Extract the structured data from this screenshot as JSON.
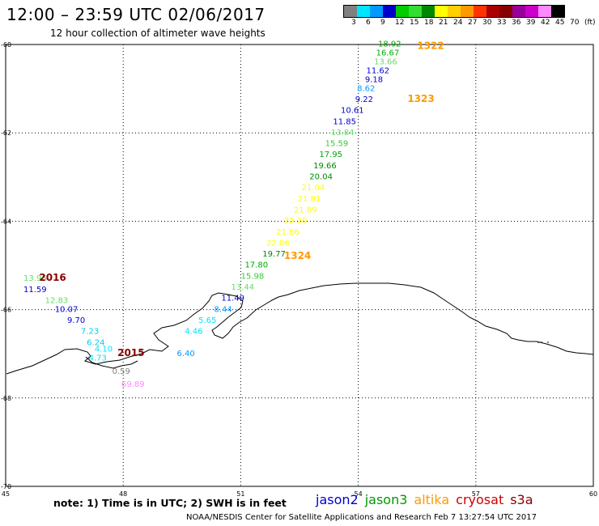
{
  "title": "12:00 – 23:59 UTC 02/06/2017",
  "subtitle": "12 hour collection of altimeter wave heights",
  "colorbar": {
    "colors": [
      "#808080",
      "#00e5ff",
      "#0099ff",
      "#0000cc",
      "#00cc00",
      "#33dd33",
      "#008800",
      "#ffff00",
      "#ffd000",
      "#ff9900",
      "#ff3300",
      "#aa0000",
      "#880000",
      "#990099",
      "#cc00cc",
      "#ff88ff",
      "#000000"
    ],
    "labels": [
      "3",
      "6",
      "9",
      "12",
      "15",
      "18",
      "21",
      "24",
      "27",
      "30",
      "33",
      "36",
      "39",
      "42",
      "45",
      "70",
      "(ft)"
    ]
  },
  "axes": {
    "x_ticks": [
      "45",
      "48",
      "51",
      "54",
      "57",
      "60"
    ],
    "y_ticks": [
      "-60",
      "-62",
      "-64",
      "-66",
      "-68",
      "-70"
    ]
  },
  "tracks": [
    {
      "id": "1322",
      "color": "#ff9900",
      "labels": [
        {
          "v": "18.92",
          "c": "#00aa00",
          "lon": 54.8,
          "lat": -60.05
        },
        {
          "v": "16.67",
          "c": "#00aa00",
          "lon": 54.75,
          "lat": -60.25
        },
        {
          "v": "13.66",
          "c": "#66dd66",
          "lon": 54.7,
          "lat": -60.45
        },
        {
          "v": "11.62",
          "c": "#0000cc",
          "lon": 54.5,
          "lat": -60.65
        },
        {
          "v": "9.18",
          "c": "#0000cc",
          "lon": 54.4,
          "lat": -60.85
        },
        {
          "v": "8.62",
          "c": "#0099ff",
          "lon": 54.2,
          "lat": -61.05
        }
      ]
    },
    {
      "id": "1323",
      "color": "#ff9900",
      "labels": [
        {
          "v": "9.22",
          "c": "#0000cc",
          "lon": 54.15,
          "lat": -61.3
        },
        {
          "v": "10.61",
          "c": "#0000cc",
          "lon": 53.85,
          "lat": -61.55
        },
        {
          "v": "11.85",
          "c": "#0000cc",
          "lon": 53.65,
          "lat": -61.8
        },
        {
          "v": "13.84",
          "c": "#66dd66",
          "lon": 53.6,
          "lat": -62.05
        },
        {
          "v": "15.59",
          "c": "#33cc33",
          "lon": 53.45,
          "lat": -62.3
        },
        {
          "v": "17.95",
          "c": "#00aa00",
          "lon": 53.3,
          "lat": -62.55
        },
        {
          "v": "19.66",
          "c": "#008800",
          "lon": 53.15,
          "lat": -62.8
        },
        {
          "v": "20.04",
          "c": "#008800",
          "lon": 53.05,
          "lat": -63.05
        },
        {
          "v": "21.04",
          "c": "#ffff00",
          "lon": 52.85,
          "lat": -63.3
        },
        {
          "v": "21.81",
          "c": "#ffff00",
          "lon": 52.75,
          "lat": -63.55
        },
        {
          "v": "21.89",
          "c": "#ffff00",
          "lon": 52.65,
          "lat": -63.8
        },
        {
          "v": "22.20",
          "c": "#ffff00",
          "lon": 52.4,
          "lat": -64.05
        },
        {
          "v": "21.86",
          "c": "#ffff00",
          "lon": 52.2,
          "lat": -64.3
        },
        {
          "v": "22.06",
          "c": "#ffff00",
          "lon": 51.95,
          "lat": -64.55
        }
      ]
    },
    {
      "id": "1324",
      "color": "#ff9900",
      "labels": [
        {
          "v": "19.77",
          "c": "#008800",
          "lon": 51.85,
          "lat": -64.8
        },
        {
          "v": "17.80",
          "c": "#00aa00",
          "lon": 51.4,
          "lat": -65.05
        },
        {
          "v": "15.98",
          "c": "#33cc33",
          "lon": 51.3,
          "lat": -65.3
        },
        {
          "v": "13.44",
          "c": "#66dd66",
          "lon": 51.05,
          "lat": -65.55
        },
        {
          "v": "11.49",
          "c": "#0000cc",
          "lon": 50.8,
          "lat": -65.8
        },
        {
          "v": "8.44",
          "c": "#0099ff",
          "lon": 50.55,
          "lat": -66.05
        },
        {
          "v": "5.65",
          "c": "#00e5ff",
          "lon": 50.15,
          "lat": -66.3
        },
        {
          "v": "4.46",
          "c": "#00e5ff",
          "lon": 49.8,
          "lat": -66.55
        },
        {
          "v": "6.40",
          "c": "#0099ff",
          "lon": 49.6,
          "lat": -67.05
        }
      ]
    },
    {
      "id": "2016",
      "color": "#880000",
      "labels": [
        {
          "v": "13.96",
          "c": "#66dd66",
          "lon": 45.75,
          "lat": -65.35
        },
        {
          "v": "11.59",
          "c": "#0000cc",
          "lon": 45.75,
          "lat": -65.6
        },
        {
          "v": "12.83",
          "c": "#66dd66",
          "lon": 46.3,
          "lat": -65.85
        },
        {
          "v": "10.07",
          "c": "#0000cc",
          "lon": 46.55,
          "lat": -66.05
        },
        {
          "v": "9.70",
          "c": "#0000cc",
          "lon": 46.8,
          "lat": -66.3
        },
        {
          "v": "7.23",
          "c": "#00ccee",
          "lon": 47.15,
          "lat": -66.55
        },
        {
          "v": "6.24",
          "c": "#00ccee",
          "lon": 47.3,
          "lat": -66.8
        },
        {
          "v": "4.10",
          "c": "#00e5ff",
          "lon": 47.5,
          "lat": -66.95
        }
      ]
    },
    {
      "id": "2015",
      "color": "#880000",
      "labels": [
        {
          "v": "4.73",
          "c": "#00e5ff",
          "lon": 47.35,
          "lat": -67.15
        },
        {
          "v": "0.59",
          "c": "#808080",
          "lon": 47.95,
          "lat": -67.45
        },
        {
          "v": "69.89",
          "c": "#ff88ff",
          "lon": 48.25,
          "lat": -67.75
        }
      ]
    }
  ],
  "track_labels": [
    {
      "id": "1322",
      "lon": 55.85,
      "lat": -60.1
    },
    {
      "id": "1323",
      "lon": 55.6,
      "lat": -61.3
    },
    {
      "id": "1324",
      "lon": 52.45,
      "lat": -64.85
    },
    {
      "id": "2016",
      "lon": 46.2,
      "lat": -65.35
    },
    {
      "id": "2015",
      "lon": 48.2,
      "lat": -67.05
    }
  ],
  "note": "note:  1) Time is in UTC;  2) SWH is in feet",
  "legend": [
    {
      "name": "jason2",
      "color": "#0000cc"
    },
    {
      "name": "jason3",
      "color": "#009900"
    },
    {
      "name": "altika",
      "color": "#ff9900"
    },
    {
      "name": "cryosat",
      "color": "#cc0000"
    },
    {
      "name": "s3a",
      "color": "#880000"
    }
  ],
  "footer": "NOAA/NESDIS Center for Satellite Applications and Research      Feb  7 13:27:54 UTC 2017"
}
